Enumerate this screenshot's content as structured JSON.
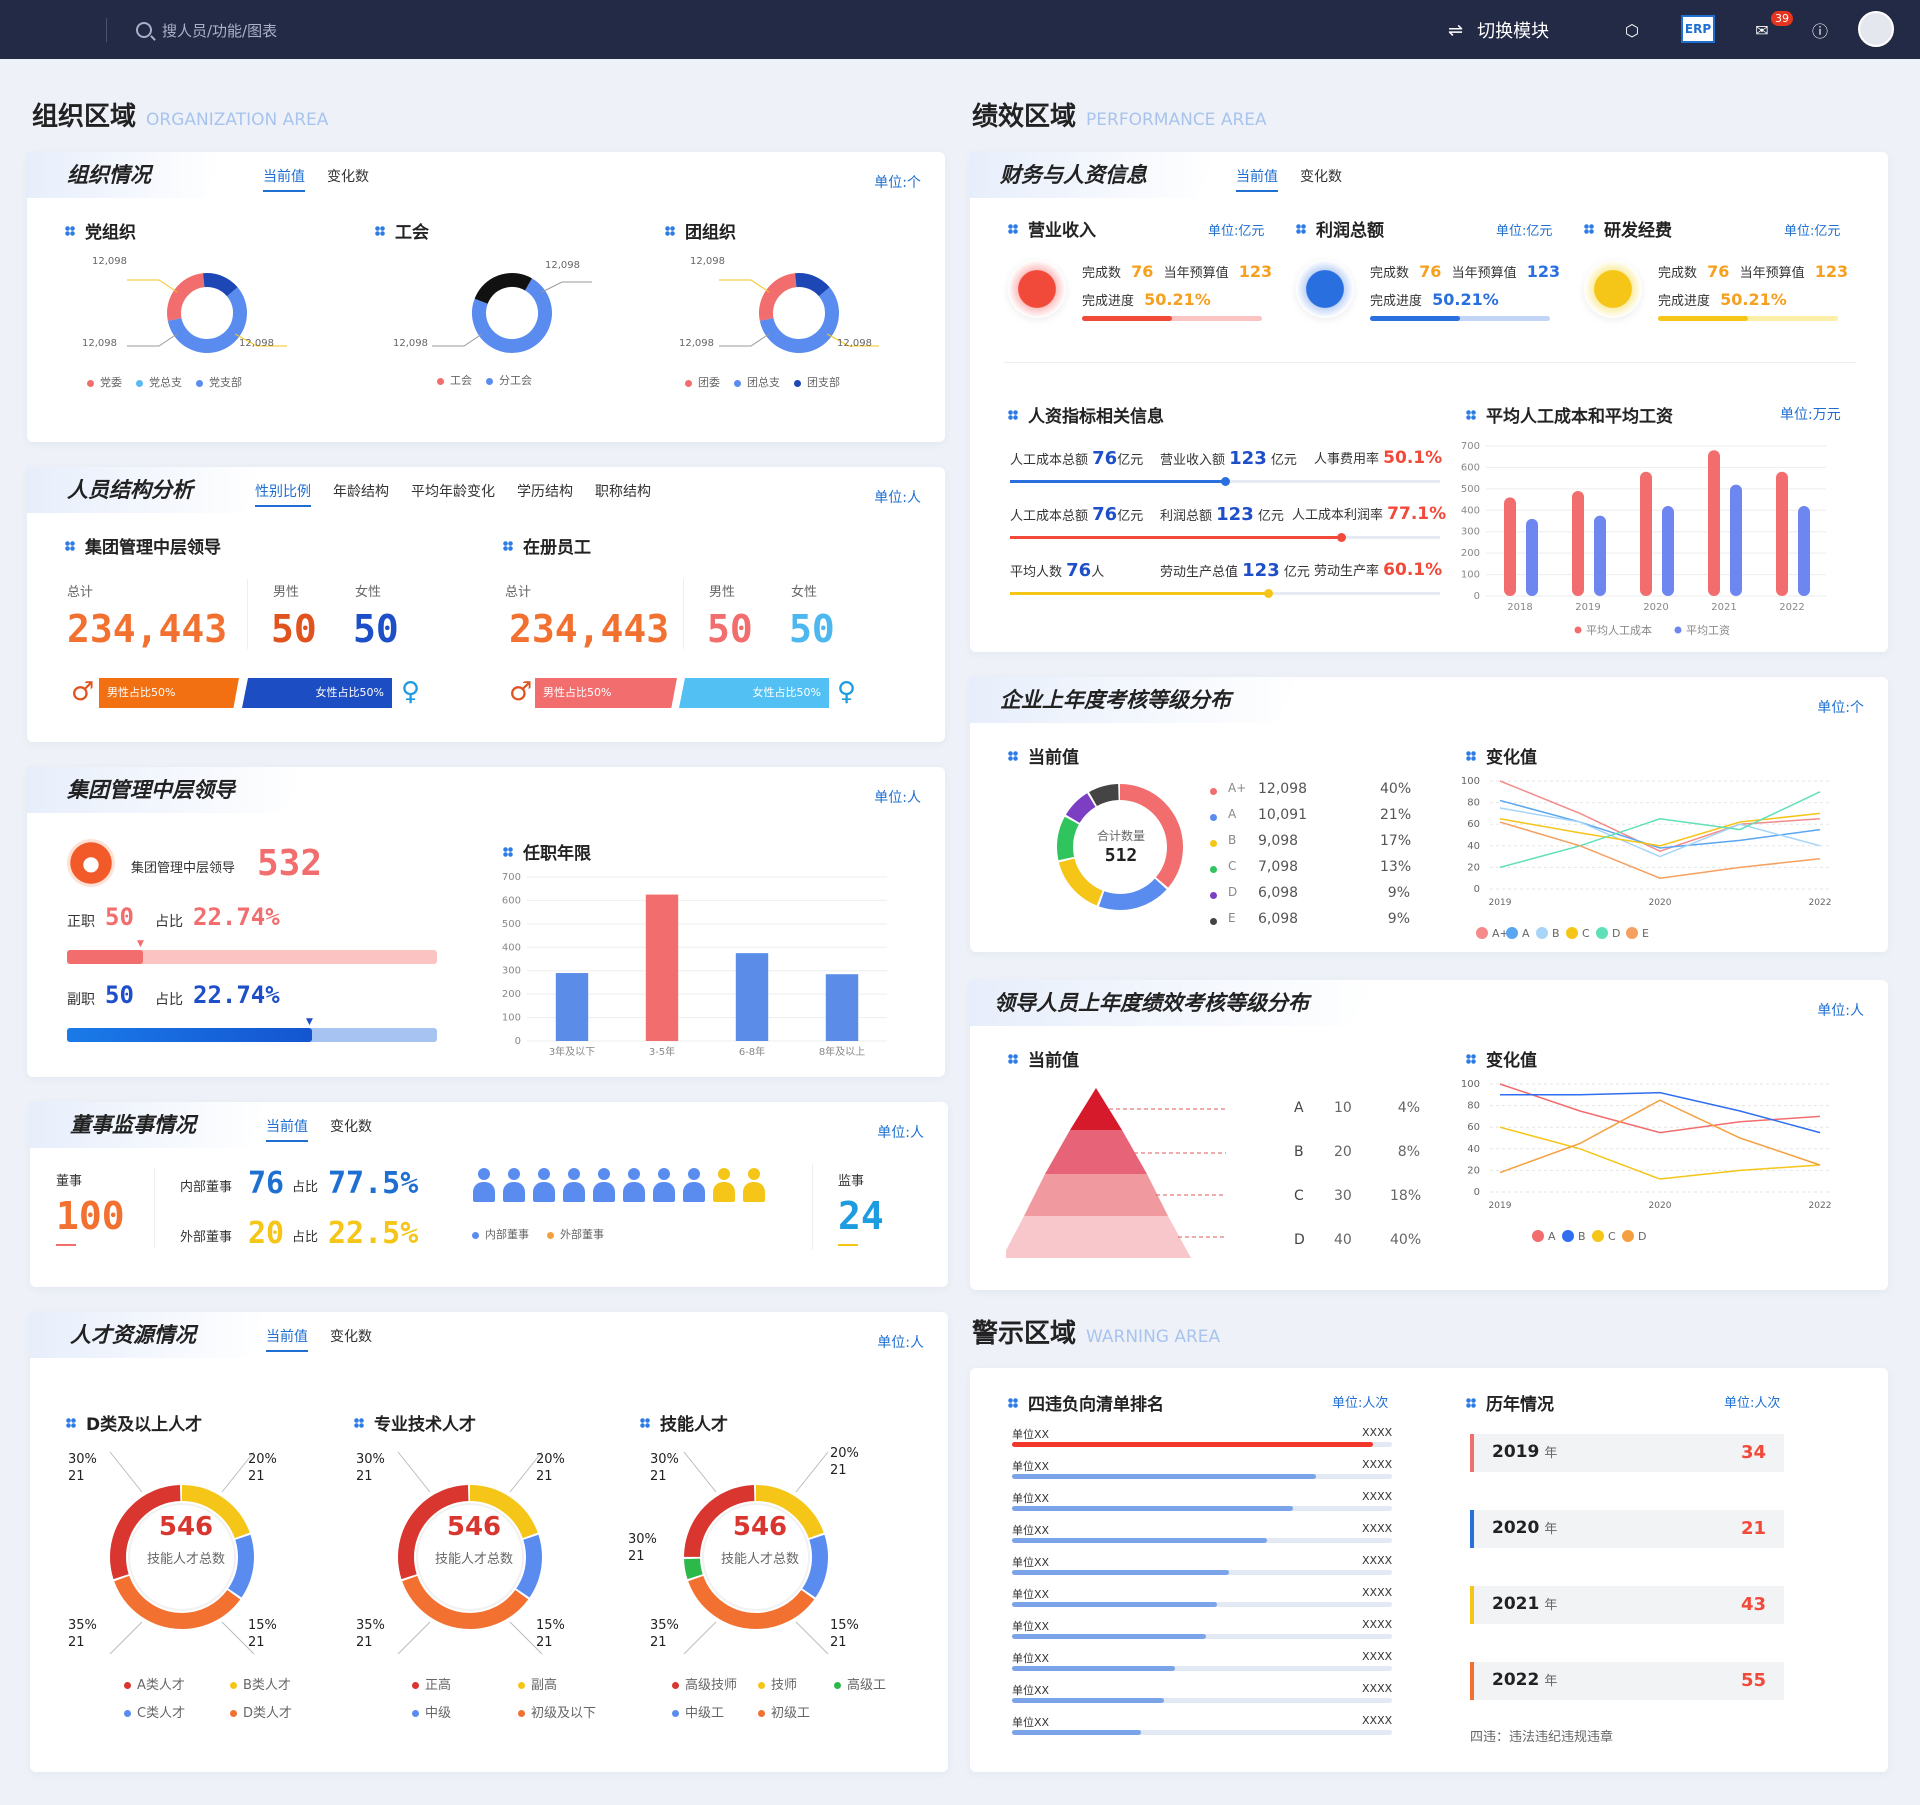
{
  "topbar": {
    "search_placeholder": "搜人员/功能/图表",
    "switch_label": "切换模块",
    "erp_label": "ERP",
    "mail_badge": "39"
  },
  "org": {
    "title": "组织区域",
    "title_en": "ORGANIZATION AREA"
  },
  "perf": {
    "title": "绩效区域",
    "title_en": "PERFORMANCE AREA"
  },
  "warn": {
    "title": "警示区域",
    "title_en": "WARNING AREA"
  },
  "org_status": {
    "title": "组织情况",
    "tabs": [
      "当前值",
      "变化数"
    ],
    "unit": "单位:个",
    "groups": [
      {
        "title": "党组织",
        "labels": [
          "12,098",
          "12,098",
          "12,098"
        ],
        "legend": [
          "党委",
          "党总支",
          "党支部"
        ]
      },
      {
        "title": "工会",
        "labels": [
          "12,098",
          "12,098"
        ],
        "legend": [
          "工会",
          "分工会"
        ]
      },
      {
        "title": "团组织",
        "labels": [
          "12,098",
          "12,098",
          "12,098"
        ],
        "legend": [
          "团委",
          "团总支",
          "团支部"
        ]
      }
    ]
  },
  "staff": {
    "title": "人员结构分析",
    "tabs": [
      "性别比例",
      "年龄结构",
      "平均年龄变化",
      "学历结构",
      "职称结构"
    ],
    "unit": "单位:人",
    "groups": [
      {
        "title": "集团管理中层领导",
        "total_label": "总计",
        "total": "234,443",
        "male_label": "男性",
        "male": "50",
        "female_label": "女性",
        "female": "50",
        "male_bar": "男性占比50%",
        "female_bar": "女性占比50%"
      },
      {
        "title": "在册员工",
        "total_label": "总计",
        "total": "234,443",
        "male_label": "男性",
        "male": "50",
        "female_label": "女性",
        "female": "50",
        "male_bar": "男性占比50%",
        "female_bar": "女性占比50%"
      }
    ]
  },
  "mid": {
    "title": "集团管理中层领导",
    "unit": "单位:人",
    "label": "集团管理中层领导",
    "value": "532",
    "zz_label": "正职",
    "zz": "50",
    "zz_ratio_label": "占比",
    "zz_ratio": "22.74%",
    "fz_label": "副职",
    "fz": "50",
    "fz_ratio_label": "占比",
    "fz_ratio": "22.74%",
    "tenure_title": "任职年限"
  },
  "board": {
    "title": "董事监事情况",
    "tabs": [
      "当前值",
      "变化数"
    ],
    "unit": "单位:人",
    "director_label": "董事",
    "director": "100",
    "inner_label": "内部董事",
    "inner": "76",
    "inner_ratio_label": "占比",
    "inner_ratio": "77.5%",
    "outer_label": "外部董事",
    "outer": "20",
    "outer_ratio_label": "占比",
    "outer_ratio": "22.5%",
    "legend_inner": "内部董事",
    "legend_outer": "外部董事",
    "supervisor_label": "监事",
    "supervisor": "24"
  },
  "talent": {
    "title": "人才资源情况",
    "tabs": [
      "当前值",
      "变化数"
    ],
    "unit": "单位:人",
    "groups": [
      {
        "title": "D类及以上人才",
        "center": "546",
        "center_label": "技能人才总数",
        "labels": [
          [
            "30%",
            "21"
          ],
          [
            "20%",
            "21"
          ],
          [
            "35%",
            "21"
          ],
          [
            "15%",
            "21"
          ]
        ],
        "legend": [
          "A类人才",
          "B类人才",
          "C类人才",
          "D类人才"
        ]
      },
      {
        "title": "专业技术人才",
        "center": "546",
        "center_label": "技能人才总数",
        "labels": [
          [
            "30%",
            "21"
          ],
          [
            "20%",
            "21"
          ],
          [
            "35%",
            "21"
          ],
          [
            "15%",
            "21"
          ]
        ],
        "legend": [
          "正高",
          "副高",
          "中级",
          "初级及以下"
        ]
      },
      {
        "title": "技能人才",
        "center": "546",
        "center_label": "技能人才总数",
        "labels": [
          [
            "30%",
            "21"
          ],
          [
            "20%",
            "21"
          ],
          [
            "30%",
            "21"
          ],
          [
            "35%",
            "21"
          ],
          [
            "15%",
            "21"
          ]
        ],
        "legend": [
          "高级技师",
          "技师",
          "高级工",
          "中级工",
          "初级工"
        ]
      }
    ]
  },
  "finance": {
    "title": "财务与人资信息",
    "tabs": [
      "当前值",
      "变化数"
    ],
    "kpis": [
      {
        "title": "营业收入",
        "unit": "单位:亿元",
        "done_label": "完成数",
        "done": "76",
        "budget_label": "当年预算值",
        "budget": "123",
        "prog_label": "完成进度",
        "prog": "50.21%",
        "progress": 0.5021
      },
      {
        "title": "利润总额",
        "unit": "单位:亿元",
        "done_label": "完成数",
        "done": "76",
        "budget_label": "当年预算值",
        "budget": "123",
        "prog_label": "完成进度",
        "prog": "50.21%",
        "progress": 0.5021
      },
      {
        "title": "研发经费",
        "unit": "单位:亿元",
        "done_label": "完成数",
        "done": "76",
        "budget_label": "当年预算值",
        "budget": "123",
        "prog_label": "完成进度",
        "prog": "50.21%",
        "progress": 0.5021
      }
    ],
    "hr_title": "人资指标相关信息",
    "hr_rows": [
      {
        "a_label": "人工成本总额",
        "a": "76",
        "a_unit": "亿元",
        "b_label": "营业收入额",
        "b": "123",
        "b_unit": "亿元",
        "c_label": "人事费用率",
        "c": "50.1%"
      },
      {
        "a_label": "人工成本总额",
        "a": "76",
        "a_unit": "亿元",
        "b_label": "利润总额",
        "b": "123",
        "b_unit": "亿元",
        "c_label": "人工成本利润率",
        "c": "77.1%"
      },
      {
        "a_label": "平均人数",
        "a": "76",
        "a_unit": "人",
        "b_label": "劳动生产总值",
        "b": "123",
        "b_unit": "亿元",
        "c_label": "劳动生产率",
        "c": "60.1%"
      }
    ],
    "cost_title": "平均人工成本和平均工资",
    "cost_unit": "单位:万元"
  },
  "grade": {
    "title": "企业上年度考核等级分布",
    "unit": "单位:个",
    "current": "当前值",
    "change": "变化值",
    "center_label": "合计数量",
    "center": "512",
    "rows": [
      [
        "A+",
        "12,098",
        "40%"
      ],
      [
        "A",
        "10,091",
        "21%"
      ],
      [
        "B",
        "9,098",
        "17%"
      ],
      [
        "C",
        "7,098",
        "13%"
      ],
      [
        "D",
        "6,098",
        "9%"
      ],
      [
        "E",
        "6,098",
        "9%"
      ]
    ]
  },
  "leader": {
    "title": "领导人员上年度绩效考核等级分布",
    "unit": "单位:人",
    "current": "当前值",
    "change": "变化值",
    "rows": [
      [
        "A",
        "10",
        "4%"
      ],
      [
        "B",
        "20",
        "8%"
      ],
      [
        "C",
        "30",
        "18%"
      ],
      [
        "D",
        "40",
        "40%"
      ]
    ]
  },
  "warning": {
    "rank_title": "四违负向清单排名",
    "rank_unit": "单位:人次",
    "history_title": "历年情况",
    "history_unit": "单位:人次",
    "rank_label": "单位XX",
    "rank_value": "XXXX",
    "rank_fill": [
      0.95,
      0.8,
      0.74,
      0.67,
      0.57,
      0.54,
      0.51,
      0.43,
      0.4,
      0.34
    ],
    "history": [
      {
        "year": "2019",
        "unit": "年",
        "value": "34"
      },
      {
        "year": "2020",
        "unit": "年",
        "value": "21"
      },
      {
        "year": "2021",
        "unit": "年",
        "value": "43"
      },
      {
        "year": "2022",
        "unit": "年",
        "value": "55"
      }
    ],
    "note": "四违：违法违纪违规违章"
  },
  "chart_data": [
    {
      "type": "bar",
      "title": "任职年限",
      "categories": [
        "3年及以下",
        "3-5年",
        "6-8年",
        "8年及以上"
      ],
      "values": [
        290,
        625,
        375,
        285
      ],
      "ylim": [
        0,
        700
      ],
      "yticks": [
        0,
        100,
        200,
        300,
        400,
        500,
        600,
        700
      ]
    },
    {
      "type": "bar",
      "title": "平均人工成本和平均工资",
      "categories": [
        "2018",
        "2019",
        "2020",
        "2021",
        "2022"
      ],
      "series": [
        {
          "name": "平均人工成本",
          "values": [
            460,
            490,
            580,
            680,
            580
          ]
        },
        {
          "name": "平均工资",
          "values": [
            360,
            375,
            420,
            520,
            420
          ]
        }
      ],
      "ylim": [
        0,
        700
      ],
      "yticks": [
        0,
        100,
        200,
        300,
        400,
        500,
        600,
        700
      ]
    },
    {
      "type": "line",
      "title": "变化值",
      "x": [
        "2019",
        "",
        "2020",
        "",
        "2022"
      ],
      "ylim": [
        0,
        100
      ],
      "yticks": [
        0,
        20,
        40,
        60,
        80,
        100
      ],
      "series": [
        {
          "name": "A+",
          "values": [
            100,
            70,
            35,
            60,
            65
          ]
        },
        {
          "name": "A",
          "values": [
            82,
            62,
            38,
            45,
            55
          ]
        },
        {
          "name": "B",
          "values": [
            75,
            62,
            30,
            60,
            40
          ]
        },
        {
          "name": "C",
          "values": [
            65,
            52,
            40,
            62,
            70
          ]
        },
        {
          "name": "D",
          "values": [
            20,
            40,
            65,
            55,
            90
          ]
        },
        {
          "name": "E",
          "values": [
            62,
            40,
            10,
            20,
            28
          ]
        }
      ]
    },
    {
      "type": "line",
      "title": "变化值",
      "x": [
        "2019",
        "",
        "2020",
        "",
        "2022"
      ],
      "ylim": [
        0,
        100
      ],
      "yticks": [
        0,
        20,
        40,
        60,
        80,
        100
      ],
      "series": [
        {
          "name": "A",
          "values": [
            100,
            75,
            55,
            65,
            70
          ]
        },
        {
          "name": "B",
          "values": [
            90,
            90,
            92,
            75,
            55
          ]
        },
        {
          "name": "C",
          "values": [
            60,
            40,
            12,
            20,
            25
          ]
        },
        {
          "name": "D",
          "values": [
            18,
            45,
            85,
            50,
            25
          ]
        }
      ]
    }
  ],
  "colors": {
    "accent": "#1e6fd1",
    "red": "#f0524a",
    "orange": "#f27030",
    "blue": "#2a5fd6",
    "light_blue": "#5ab8f2",
    "yellow": "#f5c518"
  }
}
